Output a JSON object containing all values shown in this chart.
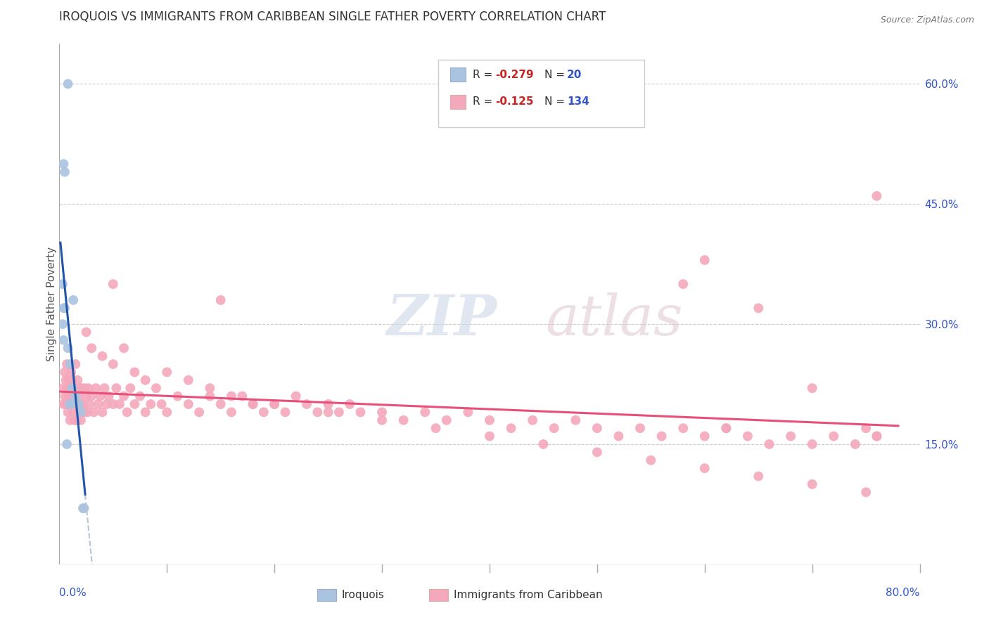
{
  "title": "IROQUOIS VS IMMIGRANTS FROM CARIBBEAN SINGLE FATHER POVERTY CORRELATION CHART",
  "source": "Source: ZipAtlas.com",
  "ylabel": "Single Father Poverty",
  "right_yticklabels": [
    "15.0%",
    "30.0%",
    "45.0%",
    "60.0%"
  ],
  "right_yticks": [
    0.15,
    0.3,
    0.45,
    0.6
  ],
  "xlim": [
    0.0,
    0.8
  ],
  "ylim": [
    0.0,
    0.65
  ],
  "color_iroquois": "#aac4e0",
  "color_caribbean": "#f4a8bc",
  "color_iroquois_line": "#2255aa",
  "color_caribbean_line": "#e8507a",
  "color_dashed": "#b8c4d8",
  "iroquois_x": [
    0.008,
    0.004,
    0.005,
    0.003,
    0.004,
    0.005,
    0.003,
    0.004,
    0.008,
    0.01,
    0.012,
    0.015,
    0.01,
    0.01,
    0.018,
    0.02,
    0.022,
    0.023,
    0.007,
    0.013
  ],
  "iroquois_y": [
    0.6,
    0.5,
    0.49,
    0.35,
    0.32,
    0.32,
    0.3,
    0.28,
    0.27,
    0.25,
    0.22,
    0.21,
    0.2,
    0.2,
    0.2,
    0.19,
    0.07,
    0.07,
    0.15,
    0.33
  ],
  "caribbean_x": [
    0.003,
    0.004,
    0.005,
    0.005,
    0.006,
    0.006,
    0.007,
    0.007,
    0.008,
    0.008,
    0.009,
    0.009,
    0.01,
    0.01,
    0.011,
    0.011,
    0.012,
    0.012,
    0.013,
    0.013,
    0.014,
    0.014,
    0.015,
    0.015,
    0.016,
    0.016,
    0.017,
    0.018,
    0.018,
    0.019,
    0.02,
    0.02,
    0.021,
    0.022,
    0.023,
    0.024,
    0.025,
    0.026,
    0.027,
    0.028,
    0.03,
    0.032,
    0.034,
    0.036,
    0.038,
    0.04,
    0.042,
    0.044,
    0.046,
    0.05,
    0.053,
    0.056,
    0.06,
    0.063,
    0.066,
    0.07,
    0.075,
    0.08,
    0.085,
    0.09,
    0.095,
    0.1,
    0.11,
    0.12,
    0.13,
    0.14,
    0.15,
    0.16,
    0.17,
    0.18,
    0.19,
    0.2,
    0.21,
    0.22,
    0.23,
    0.24,
    0.25,
    0.26,
    0.27,
    0.28,
    0.3,
    0.32,
    0.34,
    0.36,
    0.38,
    0.4,
    0.42,
    0.44,
    0.46,
    0.48,
    0.5,
    0.52,
    0.54,
    0.56,
    0.58,
    0.6,
    0.62,
    0.64,
    0.66,
    0.68,
    0.7,
    0.72,
    0.74,
    0.76,
    0.025,
    0.03,
    0.04,
    0.05,
    0.06,
    0.07,
    0.08,
    0.1,
    0.12,
    0.14,
    0.16,
    0.18,
    0.2,
    0.25,
    0.3,
    0.35,
    0.4,
    0.45,
    0.5,
    0.55,
    0.6,
    0.65,
    0.7,
    0.75,
    0.76,
    0.6,
    0.65,
    0.7,
    0.75,
    0.76,
    0.58,
    0.62,
    0.05,
    0.15
  ],
  "caribbean_y": [
    0.22,
    0.2,
    0.24,
    0.21,
    0.23,
    0.2,
    0.25,
    0.22,
    0.21,
    0.19,
    0.23,
    0.2,
    0.22,
    0.18,
    0.24,
    0.21,
    0.23,
    0.2,
    0.22,
    0.19,
    0.21,
    0.18,
    0.25,
    0.22,
    0.2,
    0.18,
    0.23,
    0.21,
    0.19,
    0.22,
    0.2,
    0.18,
    0.22,
    0.2,
    0.19,
    0.22,
    0.21,
    0.19,
    0.22,
    0.2,
    0.21,
    0.19,
    0.22,
    0.2,
    0.21,
    0.19,
    0.22,
    0.2,
    0.21,
    0.2,
    0.22,
    0.2,
    0.21,
    0.19,
    0.22,
    0.2,
    0.21,
    0.19,
    0.2,
    0.22,
    0.2,
    0.19,
    0.21,
    0.2,
    0.19,
    0.21,
    0.2,
    0.19,
    0.21,
    0.2,
    0.19,
    0.2,
    0.19,
    0.21,
    0.2,
    0.19,
    0.2,
    0.19,
    0.2,
    0.19,
    0.19,
    0.18,
    0.19,
    0.18,
    0.19,
    0.18,
    0.17,
    0.18,
    0.17,
    0.18,
    0.17,
    0.16,
    0.17,
    0.16,
    0.17,
    0.16,
    0.17,
    0.16,
    0.15,
    0.16,
    0.15,
    0.16,
    0.15,
    0.16,
    0.29,
    0.27,
    0.26,
    0.25,
    0.27,
    0.24,
    0.23,
    0.24,
    0.23,
    0.22,
    0.21,
    0.2,
    0.2,
    0.19,
    0.18,
    0.17,
    0.16,
    0.15,
    0.14,
    0.13,
    0.12,
    0.11,
    0.1,
    0.09,
    0.46,
    0.38,
    0.32,
    0.22,
    0.17,
    0.16,
    0.35,
    0.17,
    0.35,
    0.33
  ]
}
